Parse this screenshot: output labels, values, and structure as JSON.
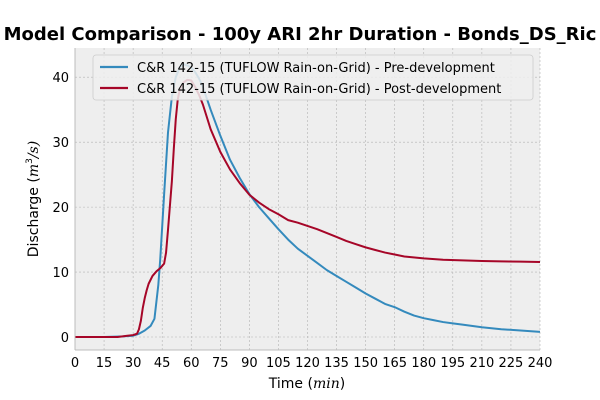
{
  "chart_data": {
    "type": "line",
    "title": "Model Comparison - 100y ARI 2hr Duration - Bonds_DS_Ric",
    "xlabel_text": "Time (",
    "xlabel_unit": "min",
    "xlabel_close": ")",
    "ylabel_text": "Discharge (",
    "ylabel_unit": "m",
    "ylabel_sup": "3",
    "ylabel_unit_tail": "/s)",
    "xlim": [
      0,
      240
    ],
    "ylim": [
      -2,
      44.5
    ],
    "xticks": [
      0,
      15,
      30,
      45,
      60,
      75,
      90,
      105,
      120,
      135,
      150,
      165,
      180,
      195,
      210,
      225,
      240
    ],
    "yticks": [
      0,
      10,
      20,
      30,
      40
    ],
    "grid": true,
    "legend_position": "top-right",
    "series": [
      {
        "name": "C&R 142-15 (TUFLOW Rain-on-Grid) - Pre-development",
        "color": "#348abd",
        "x": [
          0,
          15,
          25,
          30,
          33,
          36,
          39,
          41,
          43,
          44,
          46,
          48,
          50,
          52,
          54,
          56,
          58,
          60,
          62,
          64,
          66,
          70,
          75,
          80,
          85,
          90,
          95,
          100,
          105,
          110,
          115,
          120,
          125,
          130,
          135,
          140,
          145,
          150,
          155,
          160,
          165,
          170,
          175,
          180,
          185,
          190,
          195,
          200,
          210,
          220,
          230,
          240
        ],
        "y": [
          0,
          0,
          0.1,
          0.2,
          0.5,
          1.0,
          1.7,
          2.8,
          8.0,
          12.0,
          22.0,
          31.5,
          37.0,
          40.0,
          41.5,
          42.0,
          41.8,
          41.5,
          40.8,
          39.8,
          38.5,
          35.0,
          31.0,
          27.3,
          24.5,
          22.0,
          20.0,
          18.3,
          16.6,
          15.0,
          13.6,
          12.5,
          11.4,
          10.3,
          9.4,
          8.5,
          7.6,
          6.7,
          5.9,
          5.1,
          4.6,
          3.9,
          3.3,
          2.9,
          2.6,
          2.3,
          2.1,
          1.9,
          1.5,
          1.2,
          1.0,
          0.8
        ]
      },
      {
        "name": "C&R 142-15 (TUFLOW Rain-on-Grid) - Post-development",
        "color": "#a60628",
        "x": [
          0,
          15,
          22,
          27,
          30,
          32,
          33,
          34,
          35,
          36,
          37,
          38,
          40,
          42,
          44,
          46,
          47,
          48,
          50,
          51,
          52,
          53,
          54,
          56,
          58,
          60,
          62,
          64,
          66,
          70,
          75,
          80,
          85,
          90,
          95,
          100,
          105,
          110,
          115,
          120,
          125,
          130,
          135,
          140,
          145,
          150,
          155,
          160,
          165,
          170,
          180,
          190,
          200,
          210,
          220,
          230,
          240
        ],
        "y": [
          0,
          0,
          0,
          0.2,
          0.3,
          0.5,
          1.2,
          2.5,
          4.5,
          6.0,
          7.2,
          8.2,
          9.4,
          10.1,
          10.6,
          11.3,
          13.0,
          16.5,
          24.0,
          29.0,
          33.5,
          36.5,
          38.0,
          39.2,
          39.6,
          39.5,
          38.5,
          37.3,
          35.8,
          32.0,
          28.5,
          25.8,
          23.7,
          21.9,
          20.7,
          19.7,
          18.9,
          18.0,
          17.6,
          17.1,
          16.6,
          16.0,
          15.4,
          14.8,
          14.3,
          13.8,
          13.4,
          13.0,
          12.7,
          12.4,
          12.1,
          11.9,
          11.8,
          11.7,
          11.65,
          11.6,
          11.55
        ]
      }
    ]
  }
}
